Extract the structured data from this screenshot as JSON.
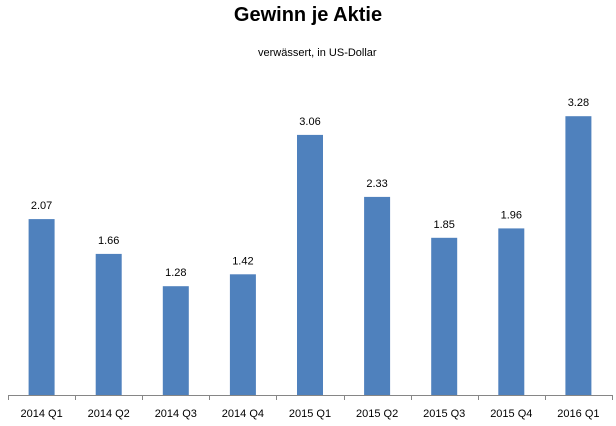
{
  "chart_data": {
    "type": "bar",
    "title": "Gewinn je Aktie",
    "subtitle": "verwässert, in US-Dollar",
    "categories": [
      "2014 Q1",
      "2014 Q2",
      "2014 Q3",
      "2014 Q4",
      "2015 Q1",
      "2015 Q2",
      "2015 Q3",
      "2015 Q4",
      "2016 Q1"
    ],
    "values": [
      2.07,
      1.66,
      1.28,
      1.42,
      3.06,
      2.33,
      1.85,
      1.96,
      3.28
    ],
    "data_labels": [
      "2.07",
      "1.66",
      "1.28",
      "1.42",
      "3.06",
      "2.33",
      "1.85",
      "1.96",
      "3.28"
    ],
    "ylim": [
      0,
      3.5
    ],
    "grid": false,
    "legend": "none",
    "bar_color": "#4f81bd",
    "axis_color": "#868686"
  }
}
